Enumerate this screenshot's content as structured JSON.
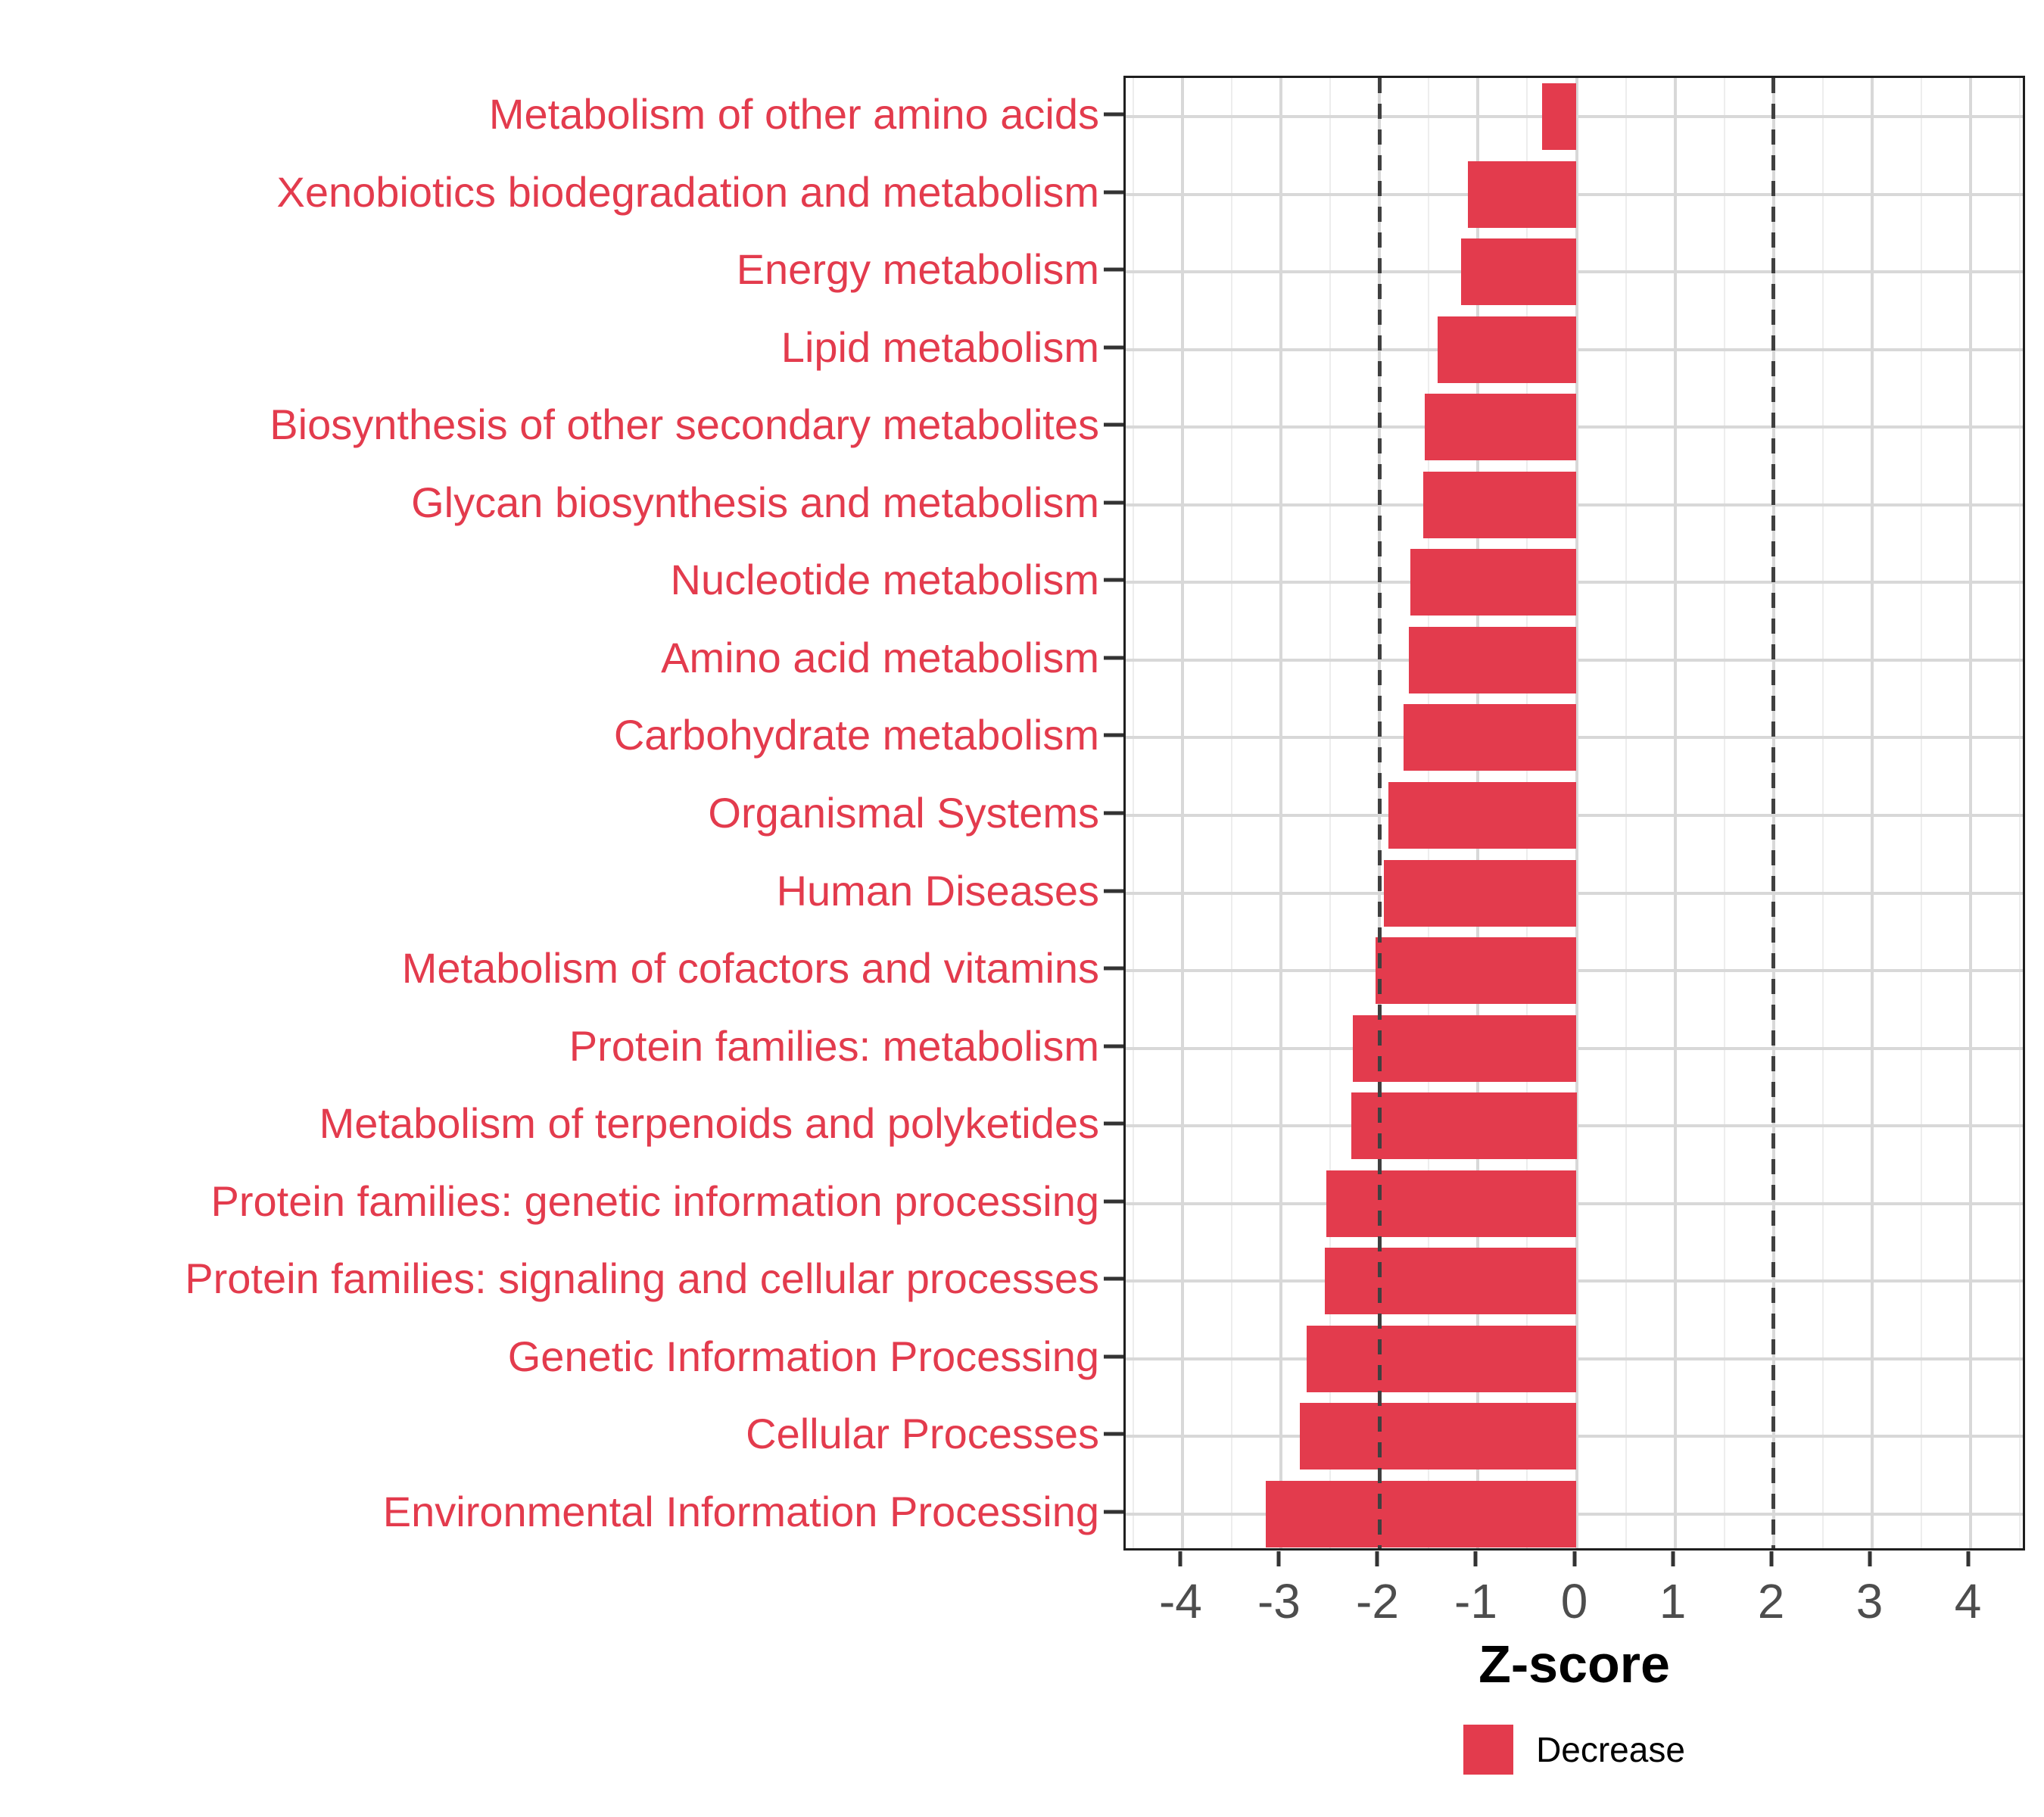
{
  "chart_data": {
    "type": "bar",
    "orientation": "horizontal",
    "xlabel": "Z-score",
    "categories": [
      "Metabolism of other amino acids",
      "Xenobiotics biodegradation and metabolism",
      "Energy metabolism",
      "Lipid metabolism",
      "Biosynthesis of other secondary metabolites",
      "Glycan biosynthesis and metabolism",
      "Nucleotide metabolism",
      "Amino acid metabolism",
      "Carbohydrate metabolism",
      "Organismal Systems",
      "Human Diseases",
      "Metabolism of cofactors and vitamins",
      "Protein families: metabolism",
      "Metabolism of terpenoids and polyketides",
      "Protein families: genetic information processing",
      "Protein families: signaling and cellular processes",
      "Genetic Information Processing",
      "Cellular Processes",
      "Environmental Information Processing"
    ],
    "values": [
      -0.35,
      -1.1,
      -1.17,
      -1.41,
      -1.54,
      -1.56,
      -1.69,
      -1.7,
      -1.76,
      -1.91,
      -1.96,
      -2.04,
      -2.27,
      -2.29,
      -2.54,
      -2.56,
      -2.74,
      -2.81,
      -3.16
    ],
    "series_name": "Decrease",
    "xticks": [
      -4,
      -3,
      -2,
      -1,
      0,
      1,
      2,
      3,
      4
    ],
    "xtick_labels": [
      "-4",
      "-3",
      "-2",
      "-1",
      "0",
      "1",
      "2",
      "3",
      "4"
    ],
    "xlim": [
      -4.58,
      4.58
    ],
    "reference_lines": [
      -2,
      2
    ],
    "grid": "on",
    "legend": {
      "label": "Decrease",
      "position": "bottom-center"
    },
    "colors": {
      "bar": "#E33B4D",
      "category_label": "#E33B4D",
      "tick_label": "#4D4D4D",
      "axis_title": "#000000",
      "grid_major": "#D8D8D8",
      "grid_minor": "#EDEDED",
      "reference_line": "#404040",
      "panel_border": "#1F1F1F",
      "tick_mark": "#333333"
    }
  }
}
